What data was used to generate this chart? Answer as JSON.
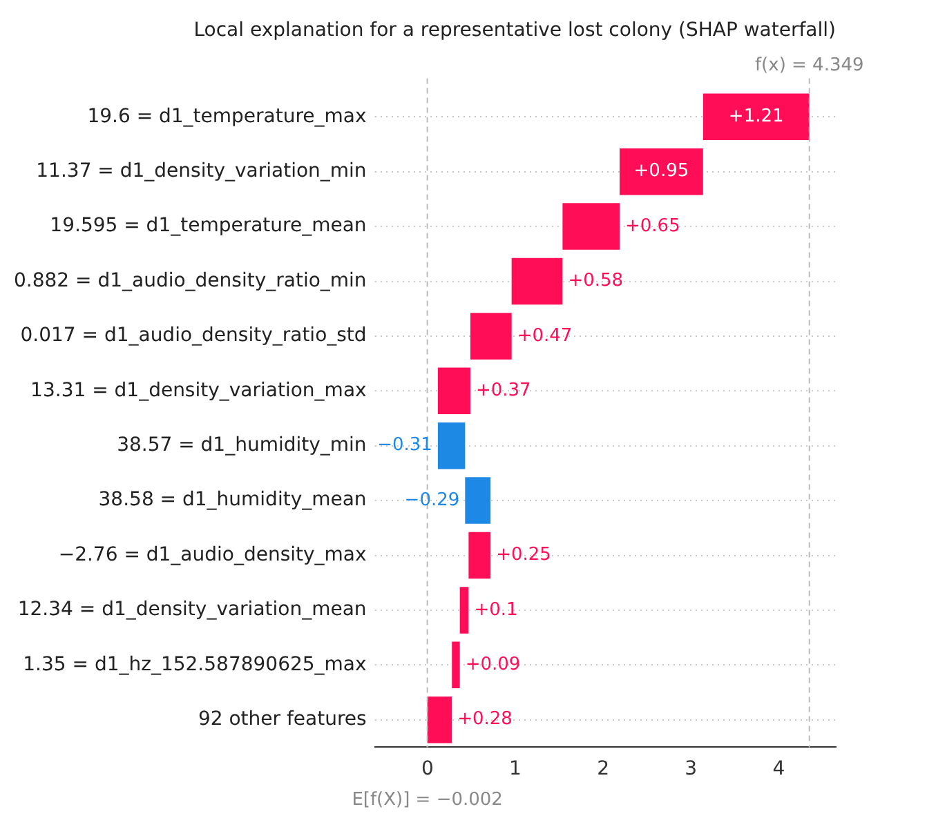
{
  "chart_data": {
    "type": "bar",
    "orientation": "horizontal",
    "title": "Local explanation for a representative lost colony (SHAP waterfall)",
    "categories": [
      "19.6 = d1_temperature_max",
      "11.37 = d1_density_variation_min",
      "19.595 = d1_temperature_mean",
      "0.882 = d1_audio_density_ratio_min",
      "0.017 = d1_audio_density_ratio_std",
      "13.31 = d1_density_variation_max",
      "38.57 = d1_humidity_min",
      "38.58 = d1_humidity_mean",
      "−2.76 = d1_audio_density_max",
      "12.34 = d1_density_variation_mean",
      "1.35 = d1_hz_152.587890625_max",
      "92 other features"
    ],
    "base": [
      3.138,
      2.188,
      1.538,
      0.958,
      0.488,
      0.118,
      0.428,
      0.718,
      0.468,
      0.368,
      0.278,
      -0.002
    ],
    "values": [
      1.21,
      0.95,
      0.65,
      0.58,
      0.47,
      0.37,
      -0.31,
      -0.29,
      0.25,
      0.1,
      0.09,
      0.28
    ],
    "value_labels": [
      "+1.21",
      "+0.95",
      "+0.65",
      "+0.58",
      "+0.47",
      "+0.37",
      "−0.31",
      "−0.29",
      "+0.25",
      "+0.1",
      "+0.09",
      "+0.28"
    ],
    "colors": [
      "#ff0d57",
      "#ff0d57",
      "#ff0d57",
      "#ff0d57",
      "#ff0d57",
      "#ff0d57",
      "#1e88e5",
      "#1e88e5",
      "#ff0d57",
      "#ff0d57",
      "#ff0d57",
      "#ff0d57"
    ],
    "xlim": [
      -0.6,
      4.65
    ],
    "xticks": [
      0,
      1,
      2,
      3,
      4
    ],
    "grid": "y",
    "ref_lines": [
      {
        "axis": "x",
        "value": 4.349,
        "label": "f(x) = 4.349",
        "color": "#bbbbbb",
        "line_style": "dashed"
      },
      {
        "axis": "x",
        "value": -0.002,
        "label": "E[f(X)] = −0.002",
        "color": "#bbbbbb",
        "line_style": "dashed"
      }
    ]
  }
}
